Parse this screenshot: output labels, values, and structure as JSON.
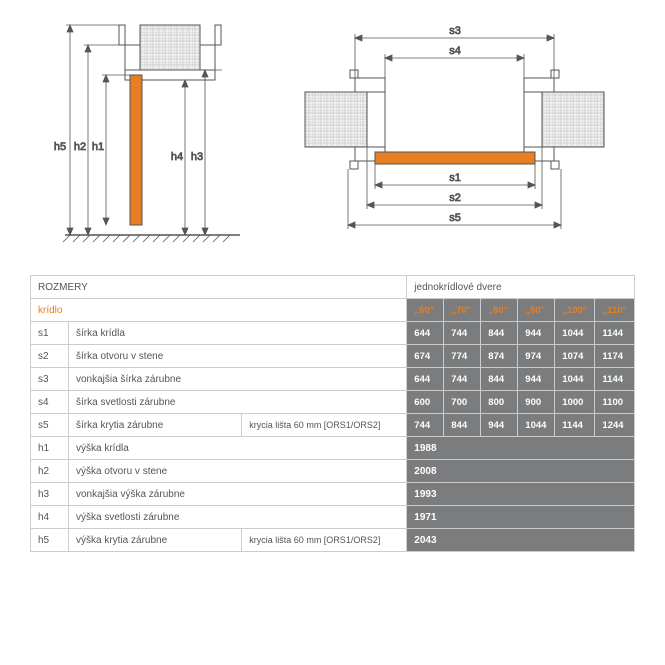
{
  "header": {
    "rozmery": "ROZMERY",
    "jednokridlove": "jednokrídlové dvere"
  },
  "kridlo_label": "krídlo",
  "sizes": [
    "„60\"",
    "„70\"",
    "„80\"",
    "„90\"",
    "„100\"",
    "„110\""
  ],
  "rows": [
    {
      "code": "s1",
      "desc": "šírka krídla",
      "sub": "",
      "vals": [
        "644",
        "744",
        "844",
        "944",
        "1044",
        "1144"
      ]
    },
    {
      "code": "s2",
      "desc": "šírka otvoru v stene",
      "sub": "",
      "vals": [
        "674",
        "774",
        "874",
        "974",
        "1074",
        "1174"
      ]
    },
    {
      "code": "s3",
      "desc": "vonkajšia šírka zárubne",
      "sub": "",
      "vals": [
        "644",
        "744",
        "844",
        "944",
        "1044",
        "1144"
      ]
    },
    {
      "code": "s4",
      "desc": "šírka svetlosti zárubne",
      "sub": "",
      "vals": [
        "600",
        "700",
        "800",
        "900",
        "1000",
        "1100"
      ]
    },
    {
      "code": "s5",
      "desc": "šírka krytia zárubne",
      "sub": "krycia lišta 60 mm [ORS1/ORS2]",
      "vals": [
        "744",
        "844",
        "944",
        "1044",
        "1144",
        "1244"
      ]
    }
  ],
  "span_rows": [
    {
      "code": "h1",
      "desc": "výška krídla",
      "sub": "",
      "val": "1988"
    },
    {
      "code": "h2",
      "desc": "výška otvoru v stene",
      "sub": "",
      "val": "2008"
    },
    {
      "code": "h3",
      "desc": "vonkajšia výška zárubne",
      "sub": "",
      "val": "1993"
    },
    {
      "code": "h4",
      "desc": "výška svetlosti zárubne",
      "sub": "",
      "val": "1971"
    },
    {
      "code": "h5",
      "desc": "výška krytia zárubne",
      "sub": "krycia lišta 60 mm [ORS1/ORS2]",
      "val": "2043"
    }
  ],
  "colors": {
    "accent": "#e67f22",
    "gray_bg": "#7b7c7e",
    "wall_hatch": "#bbbbbb",
    "line": "#555555",
    "border": "#cccccc"
  },
  "diagram": {
    "labels_left": [
      "h5",
      "h2",
      "h1",
      "h4",
      "h3"
    ],
    "labels_right": [
      "s3",
      "s4",
      "s1",
      "s2",
      "s5"
    ]
  }
}
